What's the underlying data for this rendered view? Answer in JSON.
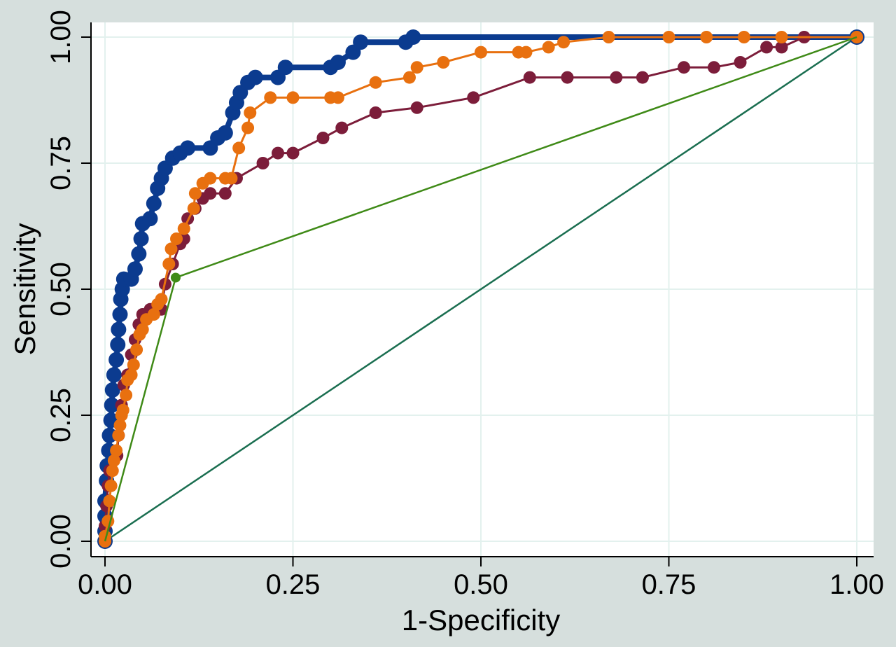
{
  "chart_data": {
    "type": "line",
    "xlabel": "1-Specificity",
    "ylabel": "Sensitivity",
    "xlim": [
      0,
      1
    ],
    "ylim": [
      0,
      1
    ],
    "xticks": [
      "0.00",
      "0.25",
      "0.50",
      "0.75",
      "1.00"
    ],
    "yticks": [
      "0.00",
      "0.25",
      "0.50",
      "0.75",
      "1.00"
    ],
    "tick_values": [
      0,
      0.25,
      0.5,
      0.75,
      1
    ],
    "grid": true,
    "legend": "none",
    "colors": {
      "background": "#d6dfdd",
      "plot_area": "#ffffff",
      "grid": "#e3f1ee",
      "reference": "#1a6e50"
    },
    "reference_line": [
      [
        0,
        0
      ],
      [
        1,
        1
      ]
    ],
    "series": [
      {
        "color": "#0b3b8f",
        "points": [
          [
            0,
            0
          ],
          [
            0,
            0.02
          ],
          [
            0,
            0.05
          ],
          [
            0,
            0.08
          ],
          [
            0.002,
            0.12
          ],
          [
            0.003,
            0.15
          ],
          [
            0.005,
            0.18
          ],
          [
            0.006,
            0.21
          ],
          [
            0.008,
            0.24
          ],
          [
            0.009,
            0.27
          ],
          [
            0.01,
            0.3
          ],
          [
            0.012,
            0.33
          ],
          [
            0.015,
            0.36
          ],
          [
            0.017,
            0.39
          ],
          [
            0.018,
            0.42
          ],
          [
            0.02,
            0.45
          ],
          [
            0.021,
            0.48
          ],
          [
            0.023,
            0.5
          ],
          [
            0.025,
            0.52
          ],
          [
            0.035,
            0.52
          ],
          [
            0.04,
            0.54
          ],
          [
            0.045,
            0.57
          ],
          [
            0.048,
            0.6
          ],
          [
            0.05,
            0.63
          ],
          [
            0.06,
            0.64
          ],
          [
            0.065,
            0.67
          ],
          [
            0.07,
            0.7
          ],
          [
            0.075,
            0.72
          ],
          [
            0.08,
            0.74
          ],
          [
            0.09,
            0.76
          ],
          [
            0.1,
            0.77
          ],
          [
            0.11,
            0.78
          ],
          [
            0.14,
            0.78
          ],
          [
            0.15,
            0.8
          ],
          [
            0.16,
            0.81
          ],
          [
            0.17,
            0.85
          ],
          [
            0.175,
            0.87
          ],
          [
            0.18,
            0.89
          ],
          [
            0.19,
            0.91
          ],
          [
            0.2,
            0.92
          ],
          [
            0.23,
            0.92
          ],
          [
            0.24,
            0.94
          ],
          [
            0.3,
            0.94
          ],
          [
            0.31,
            0.95
          ],
          [
            0.33,
            0.97
          ],
          [
            0.34,
            0.99
          ],
          [
            0.4,
            0.99
          ],
          [
            0.41,
            1.0
          ],
          [
            1.0,
            1.0
          ]
        ]
      },
      {
        "color": "#7c1d3a",
        "points": [
          [
            0,
            0
          ],
          [
            0,
            0.03
          ],
          [
            0.002,
            0.07
          ],
          [
            0.004,
            0.11
          ],
          [
            0.006,
            0.14
          ],
          [
            0.016,
            0.17
          ],
          [
            0.018,
            0.21
          ],
          [
            0.022,
            0.27
          ],
          [
            0.025,
            0.31
          ],
          [
            0.03,
            0.33
          ],
          [
            0.035,
            0.37
          ],
          [
            0.04,
            0.4
          ],
          [
            0.045,
            0.43
          ],
          [
            0.05,
            0.45
          ],
          [
            0.06,
            0.46
          ],
          [
            0.075,
            0.46
          ],
          [
            0.08,
            0.51
          ],
          [
            0.09,
            0.55
          ],
          [
            0.1,
            0.59
          ],
          [
            0.105,
            0.6
          ],
          [
            0.11,
            0.64
          ],
          [
            0.12,
            0.66
          ],
          [
            0.13,
            0.68
          ],
          [
            0.14,
            0.69
          ],
          [
            0.16,
            0.69
          ],
          [
            0.175,
            0.72
          ],
          [
            0.21,
            0.75
          ],
          [
            0.23,
            0.77
          ],
          [
            0.25,
            0.77
          ],
          [
            0.29,
            0.8
          ],
          [
            0.315,
            0.82
          ],
          [
            0.36,
            0.85
          ],
          [
            0.415,
            0.86
          ],
          [
            0.49,
            0.88
          ],
          [
            0.565,
            0.92
          ],
          [
            0.615,
            0.92
          ],
          [
            0.68,
            0.92
          ],
          [
            0.715,
            0.92
          ],
          [
            0.77,
            0.94
          ],
          [
            0.81,
            0.94
          ],
          [
            0.845,
            0.95
          ],
          [
            0.88,
            0.98
          ],
          [
            0.9,
            0.98
          ],
          [
            0.93,
            1.0
          ],
          [
            1.0,
            1.0
          ]
        ]
      },
      {
        "color": "#e8700f",
        "points": [
          [
            0,
            0
          ],
          [
            0,
            0.01
          ],
          [
            0.004,
            0.04
          ],
          [
            0.006,
            0.08
          ],
          [
            0.008,
            0.11
          ],
          [
            0.01,
            0.14
          ],
          [
            0.012,
            0.16
          ],
          [
            0.015,
            0.18
          ],
          [
            0.018,
            0.21
          ],
          [
            0.02,
            0.23
          ],
          [
            0.022,
            0.25
          ],
          [
            0.024,
            0.26
          ],
          [
            0.028,
            0.29
          ],
          [
            0.03,
            0.32
          ],
          [
            0.035,
            0.33
          ],
          [
            0.038,
            0.35
          ],
          [
            0.042,
            0.38
          ],
          [
            0.046,
            0.41
          ],
          [
            0.05,
            0.42
          ],
          [
            0.055,
            0.44
          ],
          [
            0.065,
            0.45
          ],
          [
            0.07,
            0.47
          ],
          [
            0.075,
            0.48
          ],
          [
            0.085,
            0.55
          ],
          [
            0.088,
            0.58
          ],
          [
            0.095,
            0.6
          ],
          [
            0.105,
            0.62
          ],
          [
            0.118,
            0.66
          ],
          [
            0.12,
            0.69
          ],
          [
            0.13,
            0.71
          ],
          [
            0.14,
            0.72
          ],
          [
            0.16,
            0.72
          ],
          [
            0.168,
            0.72
          ],
          [
            0.178,
            0.78
          ],
          [
            0.19,
            0.82
          ],
          [
            0.193,
            0.85
          ],
          [
            0.22,
            0.88
          ],
          [
            0.25,
            0.88
          ],
          [
            0.3,
            0.88
          ],
          [
            0.31,
            0.88
          ],
          [
            0.36,
            0.91
          ],
          [
            0.405,
            0.92
          ],
          [
            0.415,
            0.94
          ],
          [
            0.45,
            0.95
          ],
          [
            0.5,
            0.97
          ],
          [
            0.55,
            0.97
          ],
          [
            0.56,
            0.97
          ],
          [
            0.59,
            0.98
          ],
          [
            0.61,
            0.99
          ],
          [
            0.67,
            1.0
          ],
          [
            0.75,
            1.0
          ],
          [
            0.8,
            1.0
          ],
          [
            0.85,
            1.0
          ],
          [
            0.9,
            1.0
          ],
          [
            1.0,
            1.0
          ]
        ]
      },
      {
        "color": "#3f8a17",
        "points": [
          [
            0,
            0
          ],
          [
            0.094,
            0.523
          ],
          [
            1.0,
            1.0
          ]
        ]
      }
    ]
  }
}
